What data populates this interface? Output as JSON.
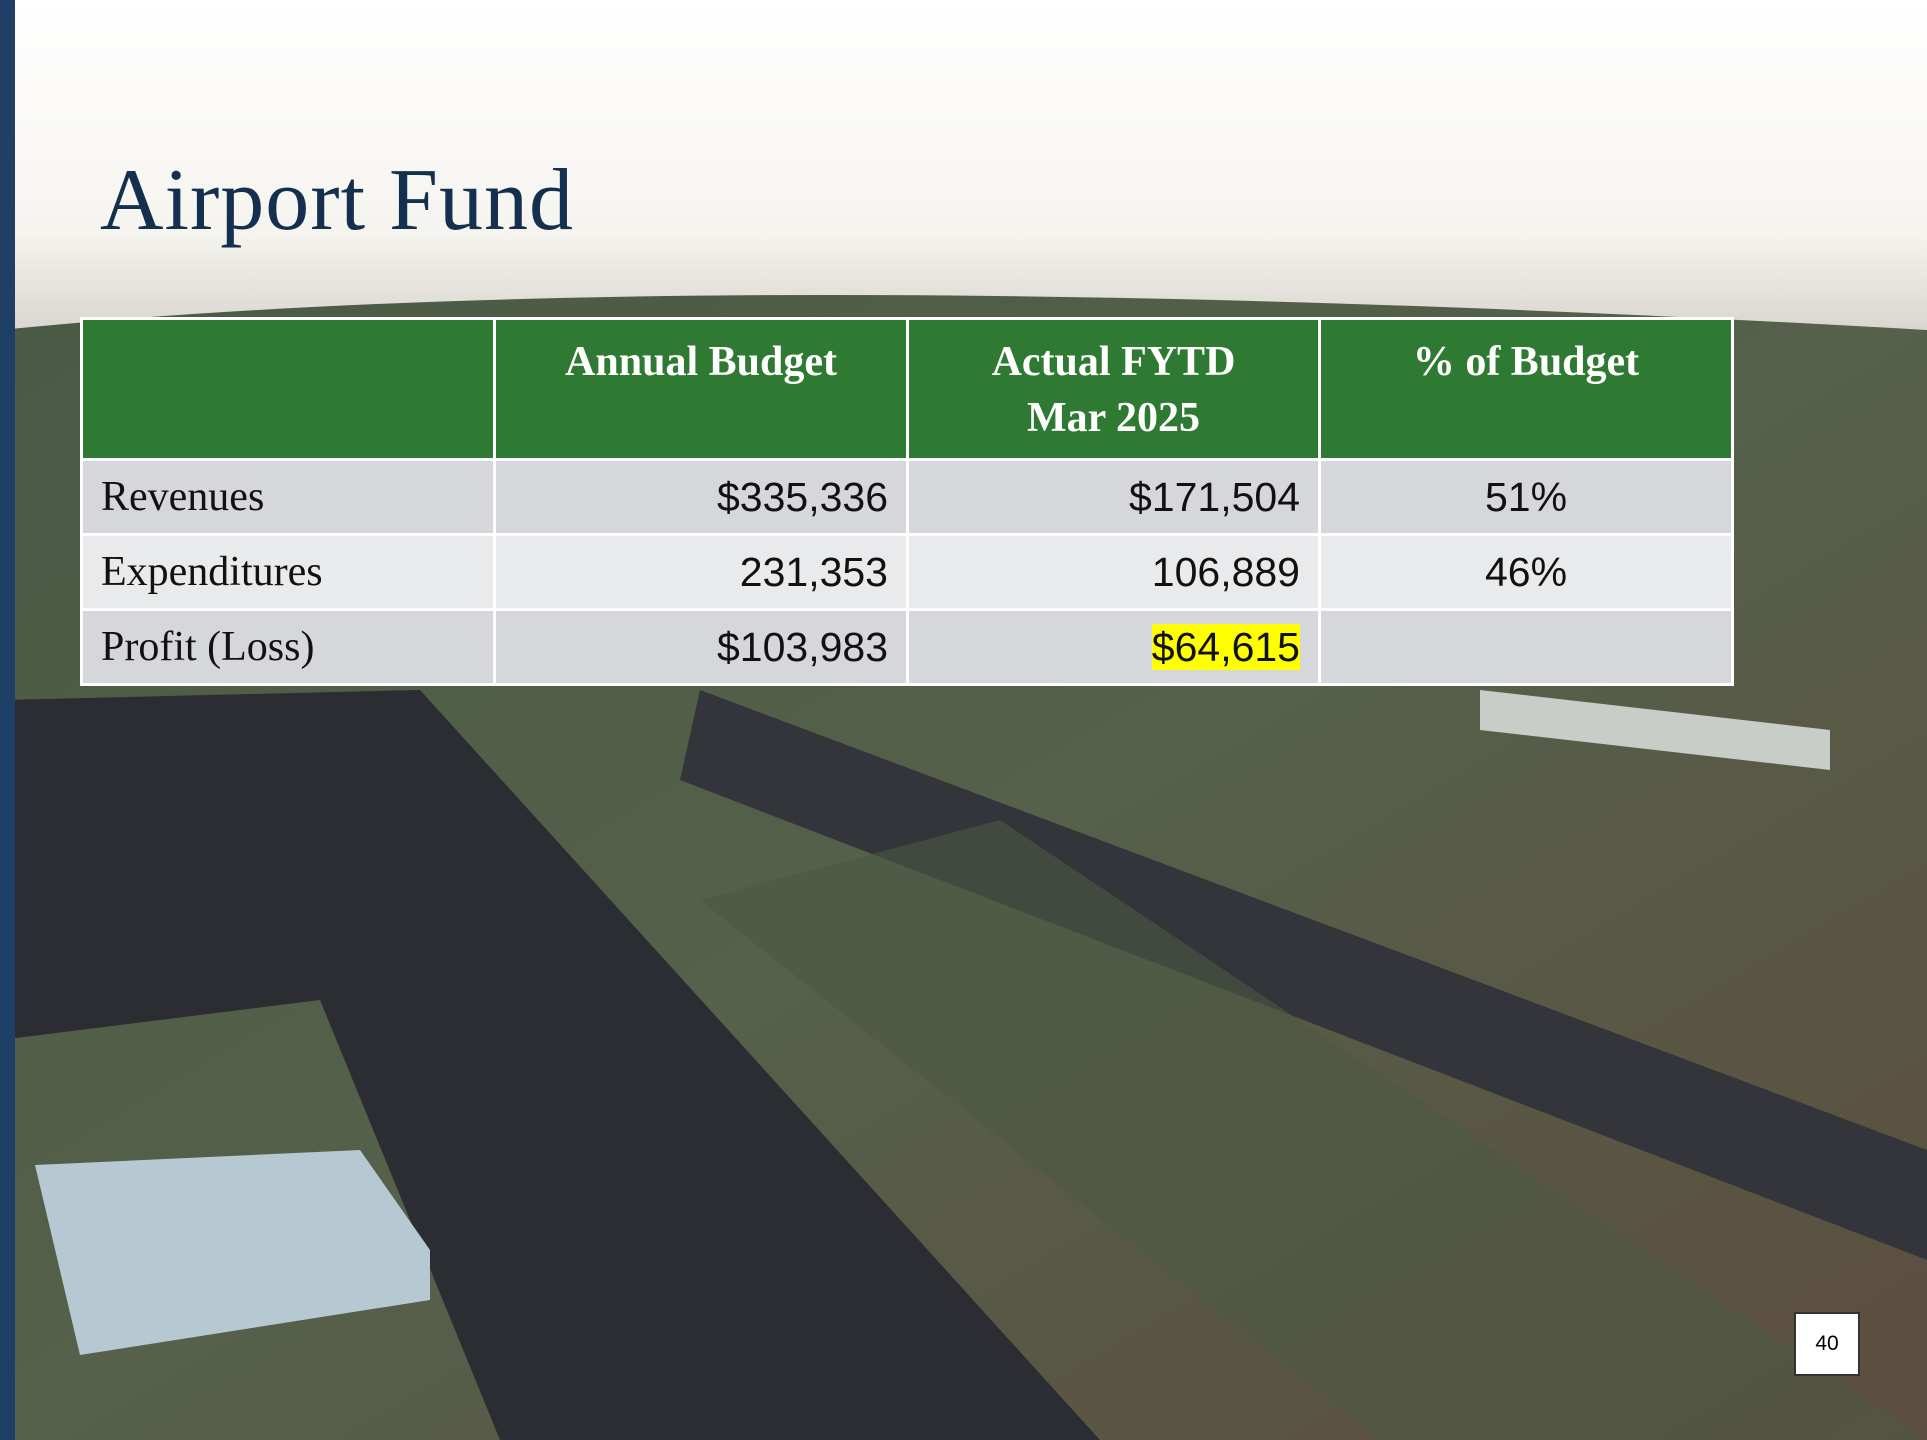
{
  "header": {
    "title": "Airport Fund"
  },
  "table": {
    "columns": [
      "Annual Budget",
      [
        "Actual FYTD",
        "Mar 2025"
      ],
      "% of Budget"
    ],
    "rows": [
      [
        "Revenues",
        "$335,336",
        "$171,504",
        "51%"
      ],
      [
        "Expenditures",
        "231,353",
        "106,889",
        "46%"
      ],
      [
        "Profit (Loss)",
        "$103,983",
        "$64,615"
      ]
    ],
    "highlight": [
      2,
      2
    ]
  },
  "footer": {
    "page_number": "40"
  }
}
